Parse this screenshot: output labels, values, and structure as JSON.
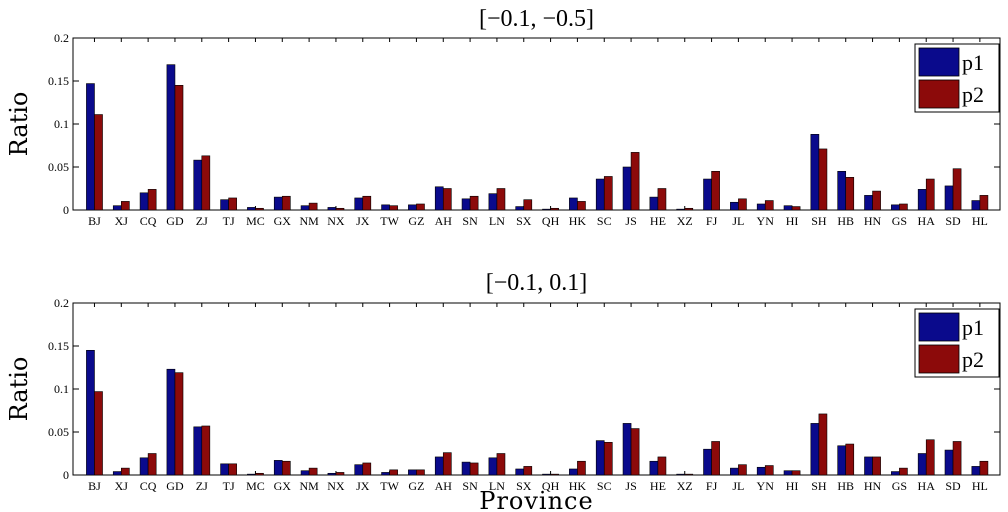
{
  "chart_data": [
    {
      "type": "bar",
      "title": "[−0.1, −0.5]",
      "ylabel": "Ratio",
      "xlabel": "",
      "ylim": [
        0,
        0.2
      ],
      "yticks": [
        "0",
        "0.05",
        "0.1",
        "0.15",
        "0.2"
      ],
      "legend_position": "top-right",
      "categories": [
        "BJ",
        "XJ",
        "CQ",
        "GD",
        "ZJ",
        "TJ",
        "MC",
        "GX",
        "NM",
        "NX",
        "JX",
        "TW",
        "GZ",
        "AH",
        "SN",
        "LN",
        "SX",
        "QH",
        "HK",
        "SC",
        "JS",
        "HE",
        "XZ",
        "FJ",
        "JL",
        "YN",
        "HI",
        "SH",
        "HB",
        "HN",
        "GS",
        "HA",
        "SD",
        "HL"
      ],
      "series": [
        {
          "name": "p1",
          "color": "#0a0a8c",
          "values": [
            0.147,
            0.005,
            0.02,
            0.169,
            0.058,
            0.012,
            0.003,
            0.015,
            0.005,
            0.003,
            0.014,
            0.006,
            0.006,
            0.027,
            0.013,
            0.019,
            0.004,
            0.001,
            0.014,
            0.036,
            0.05,
            0.015,
            0.001,
            0.036,
            0.009,
            0.007,
            0.005,
            0.088,
            0.045,
            0.017,
            0.006,
            0.024,
            0.028,
            0.011
          ]
        },
        {
          "name": "p2",
          "color": "#8c0a0a",
          "values": [
            0.111,
            0.01,
            0.024,
            0.145,
            0.063,
            0.014,
            0.002,
            0.016,
            0.008,
            0.002,
            0.016,
            0.005,
            0.007,
            0.025,
            0.016,
            0.025,
            0.012,
            0.002,
            0.01,
            0.039,
            0.067,
            0.025,
            0.002,
            0.045,
            0.013,
            0.011,
            0.004,
            0.071,
            0.038,
            0.022,
            0.007,
            0.036,
            0.048,
            0.017
          ]
        }
      ]
    },
    {
      "type": "bar",
      "title": "[−0.1, 0.1]",
      "ylabel": "Ratio",
      "xlabel": "Province",
      "ylim": [
        0,
        0.2
      ],
      "yticks": [
        "0",
        "0.05",
        "0.1",
        "0.15",
        "0.2"
      ],
      "legend_position": "top-right",
      "categories": [
        "BJ",
        "XJ",
        "CQ",
        "GD",
        "ZJ",
        "TJ",
        "MC",
        "GX",
        "NM",
        "NX",
        "JX",
        "TW",
        "GZ",
        "AH",
        "SN",
        "LN",
        "SX",
        "QH",
        "HK",
        "SC",
        "JS",
        "HE",
        "XZ",
        "FJ",
        "JL",
        "YN",
        "HI",
        "SH",
        "HB",
        "HN",
        "GS",
        "HA",
        "SD",
        "HL"
      ],
      "series": [
        {
          "name": "p1",
          "color": "#0a0a8c",
          "values": [
            0.145,
            0.004,
            0.02,
            0.123,
            0.056,
            0.013,
            0.001,
            0.017,
            0.005,
            0.002,
            0.012,
            0.003,
            0.006,
            0.021,
            0.015,
            0.02,
            0.007,
            0.001,
            0.007,
            0.04,
            0.06,
            0.016,
            0.001,
            0.03,
            0.008,
            0.009,
            0.005,
            0.06,
            0.034,
            0.021,
            0.004,
            0.025,
            0.029,
            0.01
          ]
        },
        {
          "name": "p2",
          "color": "#8c0a0a",
          "values": [
            0.097,
            0.008,
            0.025,
            0.119,
            0.057,
            0.013,
            0.002,
            0.016,
            0.008,
            0.003,
            0.014,
            0.006,
            0.006,
            0.026,
            0.014,
            0.025,
            0.01,
            0.001,
            0.016,
            0.038,
            0.054,
            0.021,
            0.001,
            0.039,
            0.012,
            0.011,
            0.005,
            0.071,
            0.036,
            0.021,
            0.008,
            0.041,
            0.039,
            0.016
          ]
        }
      ]
    }
  ]
}
